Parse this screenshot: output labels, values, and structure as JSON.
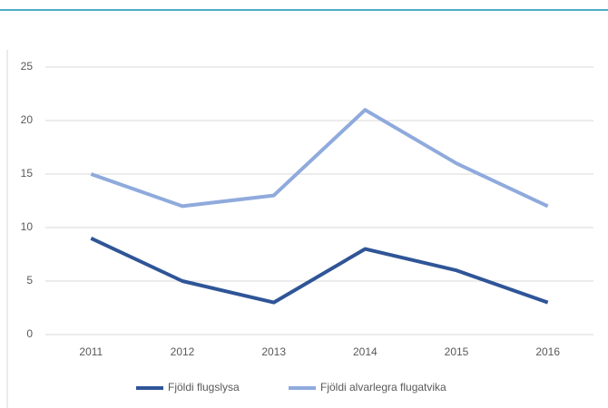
{
  "chart_data": {
    "type": "line",
    "categories": [
      "2011",
      "2012",
      "2013",
      "2014",
      "2015",
      "2016"
    ],
    "series": [
      {
        "name": "Fjöldi flugslysa",
        "color": "#2f5597",
        "values": [
          9,
          5,
          3,
          8,
          6,
          3
        ]
      },
      {
        "name": "Fjöldi alvarlegra flugatvika",
        "color": "#8faadc",
        "values": [
          15,
          12,
          13,
          21,
          16,
          12
        ]
      }
    ],
    "ylim": [
      0,
      25
    ],
    "yticks": [
      0,
      5,
      10,
      15,
      20,
      25
    ],
    "grid": true,
    "legend": "bottom"
  }
}
